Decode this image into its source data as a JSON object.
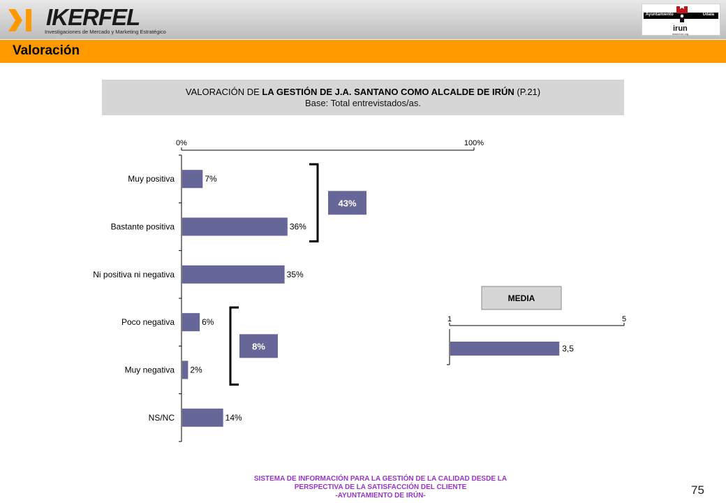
{
  "header": {
    "logo_word": "IKERFEL",
    "logo_tagline": "Investigaciones de Mercado y Marketing Estratégico",
    "client_bar_left": "Ayuntamiento",
    "client_bar_right": "Udala",
    "client_name": "irun",
    "client_url": "www.irun.org"
  },
  "section": {
    "title": "Valoración"
  },
  "chart_header": {
    "title_prefix": "VALORACIÓN DE ",
    "title_bold": "LA GESTIÓN DE J.A. SANTANO COMO ALCALDE DE IRÚN",
    "title_suffix": " (P.21)",
    "subtitle": "Base: Total entrevistados/as."
  },
  "colors": {
    "bar": "#666699",
    "accent": "#ff9900",
    "footer": "#9933cc"
  },
  "chart_data": [
    {
      "type": "bar",
      "orientation": "horizontal",
      "categories": [
        "Muy positiva",
        "Bastante positiva",
        "Ni positiva ni negativa",
        "Poco negativa",
        "Muy negativa",
        "NS/NC"
      ],
      "values": [
        7,
        36,
        35,
        6,
        2,
        14
      ],
      "value_labels": [
        "7%",
        "36%",
        "35%",
        "6%",
        "2%",
        "14%"
      ],
      "xlim": [
        0,
        100
      ],
      "axis_tick_labels": [
        "0%",
        "100%"
      ],
      "grid": false,
      "groups": [
        {
          "label": "43%",
          "categories": [
            "Muy positiva",
            "Bastante positiva"
          ]
        },
        {
          "label": "8%",
          "categories": [
            "Poco negativa",
            "Muy negativa"
          ]
        }
      ]
    },
    {
      "type": "bar",
      "orientation": "horizontal",
      "title": "MEDIA",
      "values": [
        3.5
      ],
      "value_labels": [
        "3,5"
      ],
      "xlim": [
        1,
        5
      ],
      "axis_tick_labels": [
        "1",
        "5"
      ],
      "grid": false
    }
  ],
  "footer": {
    "lines": [
      "SISTEMA DE INFORMACIÓN PARA LA GESTIÓN DE LA CALIDAD DESDE LA",
      "PERSPECTIVA DE LA SATISFACCIÓN DEL CLIENTE",
      "-AYUNTAMIENTO DE IRÚN-"
    ],
    "page_number": "75"
  }
}
